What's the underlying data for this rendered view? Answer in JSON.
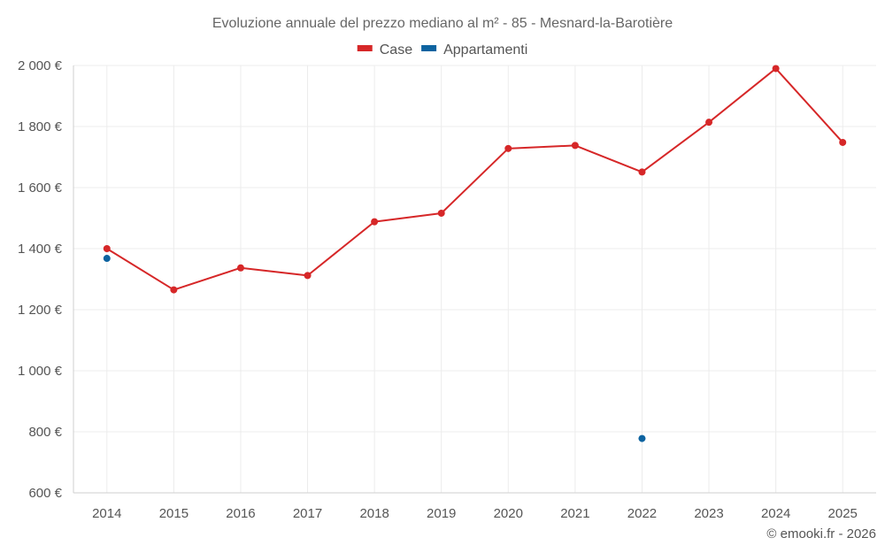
{
  "chart_data": {
    "type": "line",
    "title": "Evoluzione annuale del prezzo mediano al m² - 85 - Mesnard-la-Barotière",
    "categories": [
      "2014",
      "2015",
      "2016",
      "2017",
      "2018",
      "2019",
      "2020",
      "2021",
      "2022",
      "2023",
      "2024",
      "2025"
    ],
    "series": [
      {
        "name": "Case",
        "color": "#d62728",
        "style": "line",
        "values": [
          1400,
          1265,
          1337,
          1312,
          1488,
          1516,
          1728,
          1738,
          1651,
          1814,
          1990,
          1748
        ]
      },
      {
        "name": "Appartamenti",
        "color": "#0d63a0",
        "style": "points",
        "values": [
          1368,
          null,
          null,
          null,
          null,
          null,
          null,
          null,
          778,
          null,
          null,
          null
        ]
      }
    ],
    "ylim": [
      600,
      2000
    ],
    "y_ticks": [
      600,
      800,
      1000,
      1200,
      1400,
      1600,
      1800,
      2000
    ],
    "y_tick_labels": [
      "600 €",
      "800 €",
      "1 000 €",
      "1 200 €",
      "1 400 €",
      "1 600 €",
      "1 800 €",
      "2 000 €"
    ],
    "legend_position": "top-center",
    "grid": true
  },
  "credit": "© emooki.fr - 2026"
}
